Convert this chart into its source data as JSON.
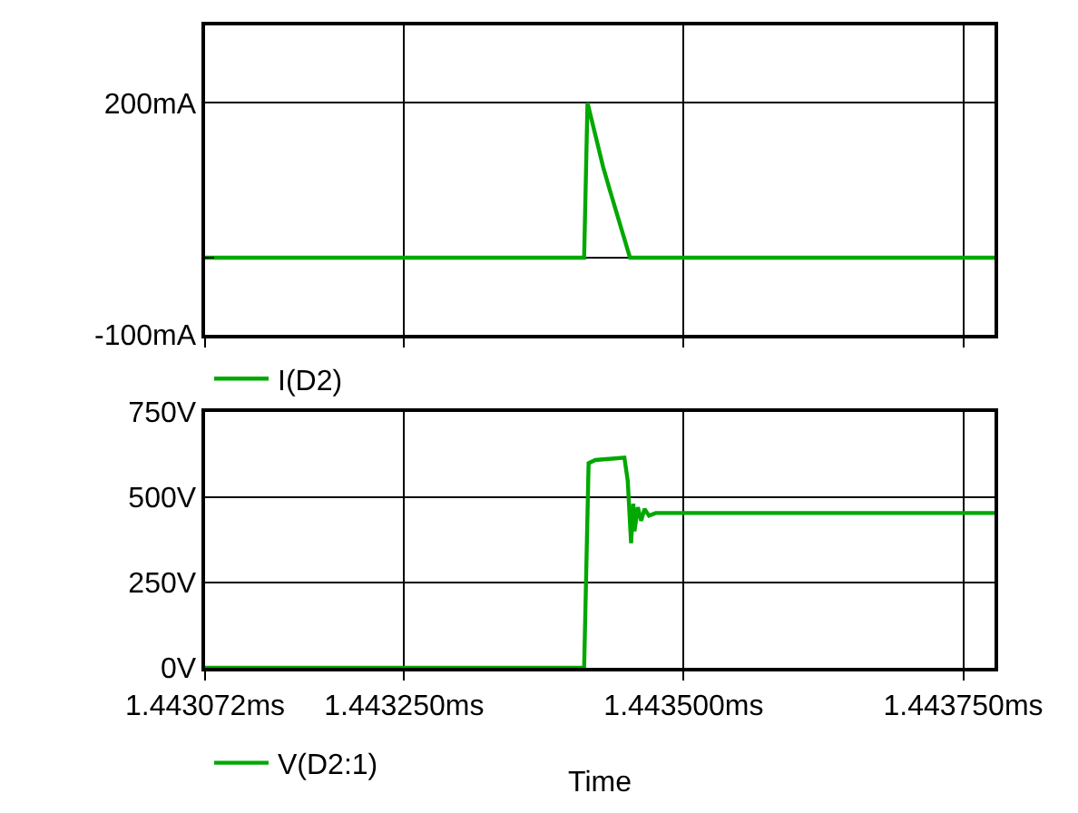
{
  "chart_data": [
    {
      "type": "line",
      "x": [
        1.443072,
        1.443411,
        1.443414,
        1.443428,
        1.443434,
        1.443452,
        1.443778
      ],
      "series": [
        {
          "name": "I(D2)",
          "color": "#00a800",
          "values": [
            0,
            0,
            200,
            117,
            87,
            0,
            0
          ]
        }
      ],
      "xlim": [
        1.443072,
        1.443778
      ],
      "xticks": [
        {
          "value": 1.443072,
          "label": null
        },
        {
          "value": 1.44325,
          "label": null
        },
        {
          "value": 1.4435,
          "label": null
        },
        {
          "value": 1.44375,
          "label": null
        }
      ],
      "ylim": [
        -100,
        300
      ],
      "yticks": [
        {
          "value": -100,
          "label": "-100mA"
        },
        {
          "value": 0,
          "label": null
        },
        {
          "value": 200,
          "label": "200mA"
        }
      ],
      "tick_labels": "y",
      "grid": true,
      "legend": "bottom left",
      "marker": "none",
      "line_style": "solid"
    },
    {
      "type": "line",
      "x": [
        1.443072,
        1.443411,
        1.443415,
        1.443421,
        1.443428,
        1.443436,
        1.443447,
        1.44345,
        1.443453,
        1.443455,
        1.443456,
        1.443459,
        1.443462,
        1.443465,
        1.443469,
        1.443475,
        1.443778
      ],
      "series": [
        {
          "name": "V(D2:1)",
          "color": "#00a800",
          "values": [
            0,
            0,
            599,
            608,
            610,
            612,
            615,
            547,
            365,
            480,
            400,
            470,
            430,
            465,
            445,
            453,
            453
          ]
        }
      ],
      "xlabel": "Time",
      "xlim": [
        1.443072,
        1.443778
      ],
      "xticks": [
        {
          "value": 1.443072,
          "label": "1.443072ms"
        },
        {
          "value": 1.44325,
          "label": "1.443250ms"
        },
        {
          "value": 1.4435,
          "label": "1.443500ms"
        },
        {
          "value": 1.44375,
          "label": "1.443750ms"
        }
      ],
      "ylim": [
        0,
        750
      ],
      "yticks": [
        {
          "value": 0,
          "label": "0V"
        },
        {
          "value": 250,
          "label": "250V"
        },
        {
          "value": 500,
          "label": "500V"
        },
        {
          "value": 750,
          "label": "750V"
        }
      ],
      "grid": true,
      "legend": "bottom left",
      "marker": "none",
      "line_style": "solid"
    }
  ]
}
